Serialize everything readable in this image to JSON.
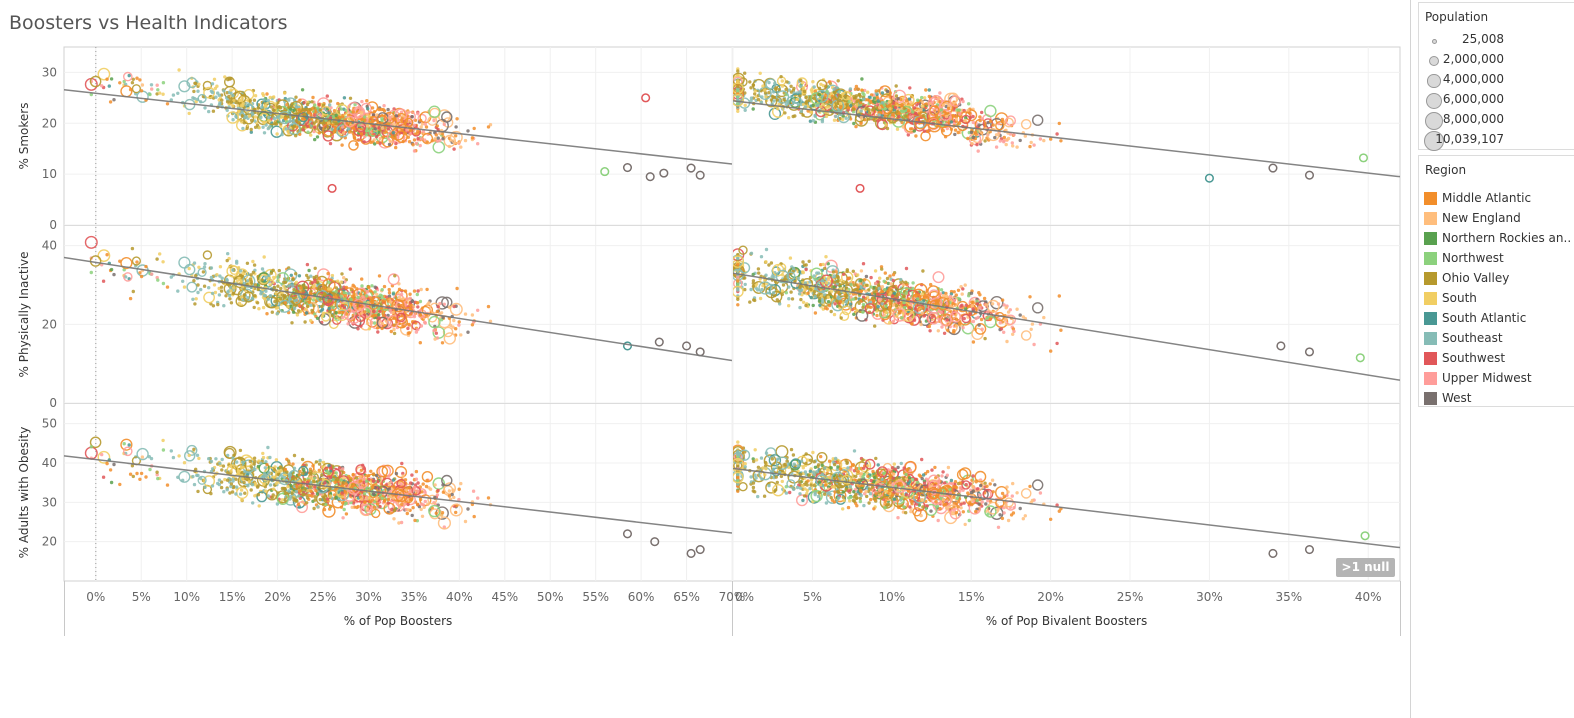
{
  "title": "Boosters vs Health Indicators",
  "null_badge": ">1 null",
  "legend": {
    "population_title": "Population",
    "sizes": [
      {
        "label": "25,008",
        "value": 25008
      },
      {
        "label": "2,000,000",
        "value": 2000000
      },
      {
        "label": "4,000,000",
        "value": 4000000
      },
      {
        "label": "6,000,000",
        "value": 6000000
      },
      {
        "label": "8,000,000",
        "value": 8000000
      },
      {
        "label": "10,039,107",
        "value": 10039107
      }
    ],
    "region_title": "Region",
    "regions": [
      {
        "label": "Middle Atlantic",
        "color": "#f28e2b"
      },
      {
        "label": "New England",
        "color": "#ffbe7d"
      },
      {
        "label": "Northern Rockies an..",
        "color": "#59a14f"
      },
      {
        "label": "Northwest",
        "color": "#8cd17d"
      },
      {
        "label": "Ohio Valley",
        "color": "#b6992d"
      },
      {
        "label": "South",
        "color": "#f1ce63"
      },
      {
        "label": "South Atlantic",
        "color": "#499894"
      },
      {
        "label": "Southeast",
        "color": "#86bcb6"
      },
      {
        "label": "Southwest",
        "color": "#e15759"
      },
      {
        "label": "Upper Midwest",
        "color": "#ff9d9a"
      },
      {
        "label": "West",
        "color": "#79706e"
      }
    ]
  },
  "chart_data": {
    "type": "scatter",
    "rows": [
      {
        "ylabel": "% Smokers",
        "yticks": [
          0,
          10,
          20,
          30
        ],
        "ylim": [
          0,
          35
        ]
      },
      {
        "ylabel": "% Physically Inactive",
        "yticks": [
          0,
          20,
          40
        ],
        "ylim": [
          0,
          45
        ]
      },
      {
        "ylabel": "% Adults with Obesity",
        "yticks": [
          20,
          30,
          40,
          50
        ],
        "ylim": [
          10,
          55
        ]
      }
    ],
    "cols": [
      {
        "xlabel": "% of Pop Boosters",
        "xticks": [
          "0%",
          "5%",
          "10%",
          "15%",
          "20%",
          "25%",
          "30%",
          "35%",
          "40%",
          "45%",
          "50%",
          "55%",
          "60%",
          "65%",
          "70%"
        ],
        "xlim": [
          -3.5,
          70
        ],
        "reference_x": 0
      },
      {
        "xlabel": "% of Pop Bivalent Boosters",
        "xticks": [
          "0%",
          "5%",
          "10%",
          "15%",
          "20%",
          "25%",
          "30%",
          "35%",
          "40%"
        ],
        "xlim": [
          0,
          42
        ]
      }
    ],
    "trend_lines": [
      [
        {
          "x": -3.5,
          "y": 26.6
        },
        {
          "x": 70,
          "y": 12.0
        }
      ],
      [
        {
          "x": 0,
          "y": 24.4
        },
        {
          "x": 42,
          "y": 9.5
        }
      ],
      [
        {
          "x": -3.5,
          "y": 37.0
        },
        {
          "x": 70,
          "y": 10.8
        }
      ],
      [
        {
          "x": 0,
          "y": 33.0
        },
        {
          "x": 42,
          "y": 5.8
        }
      ],
      [
        {
          "x": -3.5,
          "y": 41.8
        },
        {
          "x": 70,
          "y": 22.2
        }
      ],
      [
        {
          "x": 0,
          "y": 38.6
        },
        {
          "x": 42,
          "y": 18.5
        }
      ]
    ],
    "notable_points": [
      {
        "panel": 0,
        "x": 66.5,
        "y": 9.8,
        "region": "West"
      },
      {
        "panel": 0,
        "x": 65.5,
        "y": 11.2,
        "region": "West"
      },
      {
        "panel": 0,
        "x": 62.5,
        "y": 10.2,
        "region": "West"
      },
      {
        "panel": 0,
        "x": 61,
        "y": 9.5,
        "region": "West"
      },
      {
        "panel": 0,
        "x": 58.5,
        "y": 11.3,
        "region": "West"
      },
      {
        "panel": 0,
        "x": 56,
        "y": 10.5,
        "region": "Northwest"
      },
      {
        "panel": 0,
        "x": 60.5,
        "y": 25,
        "region": "Southwest"
      },
      {
        "panel": 0,
        "x": 26,
        "y": 7.2,
        "region": "Southwest"
      },
      {
        "panel": 1,
        "x": 39.7,
        "y": 13.2,
        "region": "Northwest"
      },
      {
        "panel": 1,
        "x": 36.3,
        "y": 9.8,
        "region": "West"
      },
      {
        "panel": 1,
        "x": 34,
        "y": 11.2,
        "region": "West"
      },
      {
        "panel": 1,
        "x": 30,
        "y": 9.2,
        "region": "South Atlantic"
      },
      {
        "panel": 1,
        "x": 8,
        "y": 7.2,
        "region": "Southwest"
      },
      {
        "panel": 2,
        "x": 66.5,
        "y": 13,
        "region": "West"
      },
      {
        "panel": 2,
        "x": 65,
        "y": 14.5,
        "region": "West"
      },
      {
        "panel": 2,
        "x": 62,
        "y": 15.5,
        "region": "West"
      },
      {
        "panel": 2,
        "x": 58.5,
        "y": 14.5,
        "region": "South Atlantic"
      },
      {
        "panel": 3,
        "x": 39.5,
        "y": 11.5,
        "region": "Northwest"
      },
      {
        "panel": 3,
        "x": 36.3,
        "y": 13,
        "region": "West"
      },
      {
        "panel": 3,
        "x": 34.5,
        "y": 14.5,
        "region": "West"
      },
      {
        "panel": 4,
        "x": 66.5,
        "y": 18,
        "region": "West"
      },
      {
        "panel": 4,
        "x": 65.5,
        "y": 17,
        "region": "West"
      },
      {
        "panel": 4,
        "x": 61.5,
        "y": 20,
        "region": "West"
      },
      {
        "panel": 4,
        "x": 58.5,
        "y": 22,
        "region": "West"
      },
      {
        "panel": 5,
        "x": 39.8,
        "y": 21.5,
        "region": "Northwest"
      },
      {
        "panel": 5,
        "x": 36.3,
        "y": 18,
        "region": "West"
      },
      {
        "panel": 5,
        "x": 34,
        "y": 17,
        "region": "West"
      }
    ],
    "legend_placement": "right"
  }
}
